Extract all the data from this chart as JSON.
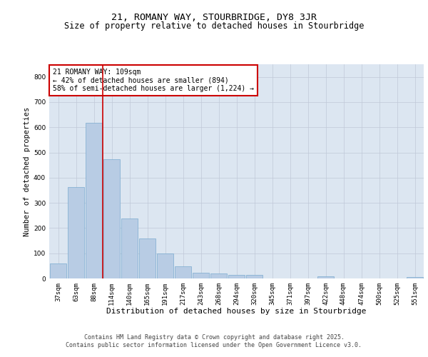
{
  "title1": "21, ROMANY WAY, STOURBRIDGE, DY8 3JR",
  "title2": "Size of property relative to detached houses in Stourbridge",
  "xlabel": "Distribution of detached houses by size in Stourbridge",
  "ylabel": "Number of detached properties",
  "categories": [
    "37sqm",
    "63sqm",
    "88sqm",
    "114sqm",
    "140sqm",
    "165sqm",
    "191sqm",
    "217sqm",
    "243sqm",
    "268sqm",
    "294sqm",
    "320sqm",
    "345sqm",
    "371sqm",
    "397sqm",
    "422sqm",
    "448sqm",
    "474sqm",
    "500sqm",
    "525sqm",
    "551sqm"
  ],
  "values": [
    60,
    362,
    618,
    472,
    237,
    160,
    99,
    47,
    22,
    20,
    15,
    13,
    0,
    0,
    0,
    8,
    0,
    0,
    0,
    0,
    5
  ],
  "bar_color": "#b8cce4",
  "bar_edge_color": "#7aabcf",
  "grid_color": "#c0c8d8",
  "bg_color": "#dce6f1",
  "vline_x": 3,
  "vline_color": "#cc0000",
  "annotation_text": "21 ROMANY WAY: 109sqm\n← 42% of detached houses are smaller (894)\n58% of semi-detached houses are larger (1,224) →",
  "annotation_box_color": "#cc0000",
  "ylim": [
    0,
    850
  ],
  "yticks": [
    0,
    100,
    200,
    300,
    400,
    500,
    600,
    700,
    800
  ],
  "footnote1": "Contains HM Land Registry data © Crown copyright and database right 2025.",
  "footnote2": "Contains public sector information licensed under the Open Government Licence v3.0.",
  "title_fontsize": 9.5,
  "subtitle_fontsize": 8.5,
  "axis_label_fontsize": 7.5,
  "tick_fontsize": 6.5,
  "annotation_fontsize": 7,
  "footnote_fontsize": 6
}
